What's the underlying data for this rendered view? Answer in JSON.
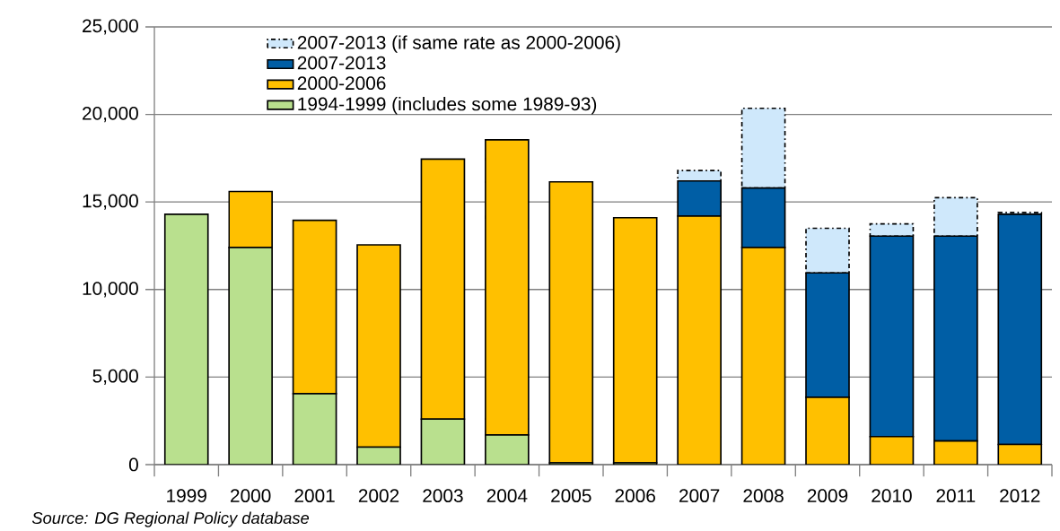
{
  "chart_data": {
    "type": "bar",
    "stacked": true,
    "categories": [
      "1999",
      "2000",
      "2001",
      "2002",
      "2003",
      "2004",
      "2005",
      "2006",
      "2007",
      "2008",
      "2009",
      "2010",
      "2011",
      "2012"
    ],
    "series": [
      {
        "name": "1994-1999 (includes some 1989-93)",
        "color": "#b9e08e",
        "values": [
          14300,
          12400,
          4050,
          1000,
          2600,
          1700,
          100,
          100,
          0,
          0,
          0,
          0,
          0,
          0
        ]
      },
      {
        "name": "2000-2006",
        "color": "#ffc000",
        "values": [
          0,
          3200,
          9900,
          11550,
          14850,
          16850,
          16050,
          14000,
          14200,
          12400,
          3850,
          1600,
          1350,
          1150
        ]
      },
      {
        "name": "2007-2013",
        "color": "#005ea5",
        "values": [
          0,
          0,
          0,
          0,
          0,
          0,
          0,
          0,
          2000,
          3400,
          7100,
          11450,
          11700,
          13150
        ]
      },
      {
        "name": "2007-2013 (if same rate as 2000-2006)",
        "color": "#cfe8fb",
        "line_style": "dashed",
        "values": [
          0,
          0,
          0,
          0,
          0,
          0,
          0,
          0,
          600,
          4550,
          2550,
          700,
          2200,
          100
        ]
      }
    ],
    "ylim": [
      0,
      25000
    ],
    "yticks": [
      0,
      {
        "value": 5000,
        "label": "5,000"
      },
      {
        "value": 10000,
        "label": "10,000"
      },
      {
        "value": 15000,
        "label": "15,000"
      },
      {
        "value": 20000,
        "label": "20,000"
      },
      {
        "value": 25000,
        "label": "25,000"
      }
    ],
    "grid": "y",
    "legend": "top",
    "annotations": [
      "Source: DG Regional Policy database"
    ]
  }
}
